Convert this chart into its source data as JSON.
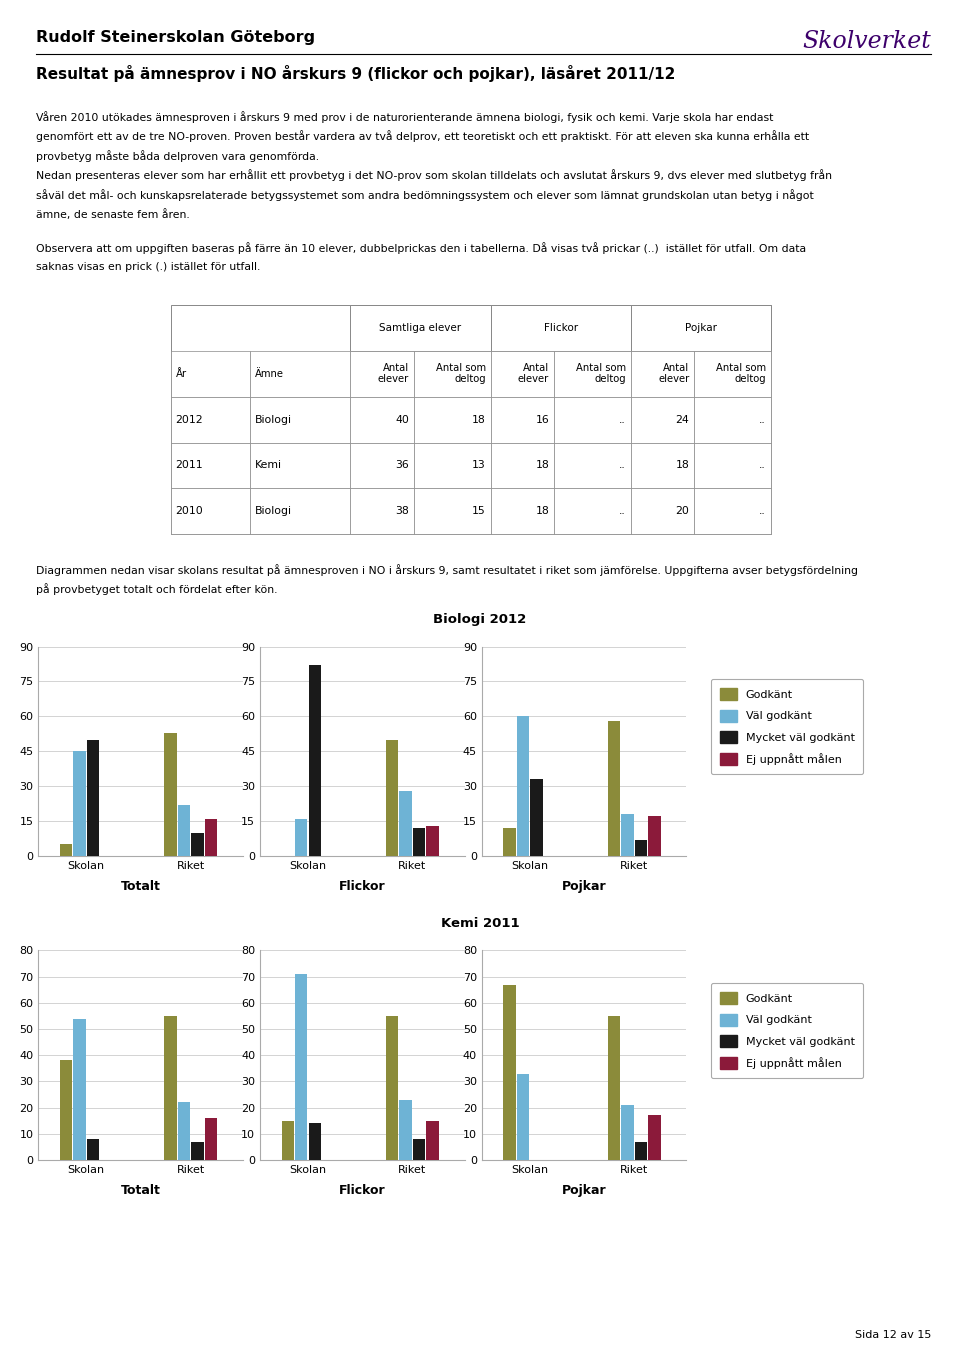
{
  "school_name": "Rudolf Steinerskolan Göteborg",
  "main_title": "Resultat på ämnesprov i NO årskurs 9 (flickor och pojkar), läsåret 2011/12",
  "intro_text1_lines": [
    "Våren 2010 utökades ämnesproven i årskurs 9 med prov i de naturorienterande ämnena biologi, fysik och kemi. Varje skola har endast",
    "genomfört ett av de tre NO-proven. Proven består vardera av två delprov, ett teoretiskt och ett praktiskt. För att eleven ska kunna erhålla ett",
    "provbetyg måste båda delproven vara genomförda."
  ],
  "intro_text2_lines": [
    "Nedan presenteras elever som har erhållit ett provbetyg i det NO-prov som skolan tilldelats och avslutat årskurs 9, dvs elever med slutbetyg från",
    "såväl det mål- och kunskapsrelaterade betygssystemet som andra bedömningssystem och elever som lämnat grundskolan utan betyg i något",
    "ämne, de senaste fem åren."
  ],
  "obs_text_lines": [
    "Observera att om uppgiften baseras på färre än 10 elever, dubbelprickas den i tabellerna. Då visas två prickar (..)  istället för utfall. Om data",
    "saknas visas en prick (.) istället för utfall."
  ],
  "diagram_text_lines": [
    "Diagrammen nedan visar skolans resultat på ämnesproven i NO i årskurs 9, samt resultatet i riket som jämförelse. Uppgifterna avser betygsfördelning",
    "på provbetyget totalt och fördelat efter kön."
  ],
  "page_text": "Sida 12 av 15",
  "table_section_headers": [
    "Samtliga elever",
    "Flickor",
    "Pojkar"
  ],
  "table_data": [
    [
      "2012",
      "Biologi",
      "40",
      "18",
      "16",
      "..",
      "24",
      ".."
    ],
    [
      "2011",
      "Kemi",
      "36",
      "13",
      "18",
      "..",
      "18",
      ".."
    ],
    [
      "2010",
      "Biologi",
      "38",
      "15",
      "18",
      "..",
      "20",
      ".."
    ]
  ],
  "chart1_title": "Biologi 2012",
  "chart2_title": "Kemi 2011",
  "subtitles": [
    "Totalt",
    "Flickor",
    "Pojkar"
  ],
  "x_labels": [
    "Skolan",
    "Riket"
  ],
  "legend_labels": [
    "Godkänt",
    "Väl godkänt",
    "Mycket väl godkänt",
    "Ej uppnått målen"
  ],
  "bar_colors": [
    "#8B8B3A",
    "#6EB3D5",
    "#1A1A1A",
    "#8B1A3A"
  ],
  "biologi2012": {
    "totalt": {
      "skolan": [
        5,
        45,
        50,
        0
      ],
      "riket": [
        53,
        22,
        10,
        16
      ]
    },
    "flickor": {
      "skolan": [
        0,
        16,
        82,
        0
      ],
      "riket": [
        50,
        28,
        12,
        13
      ]
    },
    "pojkar": {
      "skolan": [
        12,
        60,
        33,
        0
      ],
      "riket": [
        58,
        18,
        7,
        17
      ]
    }
  },
  "kemi2011": {
    "totalt": {
      "skolan": [
        38,
        54,
        8,
        0
      ],
      "riket": [
        55,
        22,
        7,
        16
      ]
    },
    "flickor": {
      "skolan": [
        15,
        71,
        14,
        0
      ],
      "riket": [
        55,
        23,
        8,
        15
      ]
    },
    "pojkar": {
      "skolan": [
        67,
        33,
        0,
        0
      ],
      "riket": [
        55,
        21,
        7,
        17
      ]
    }
  },
  "biologi_ylim": [
    0,
    90
  ],
  "biologi_yticks": [
    0,
    15,
    30,
    45,
    60,
    75,
    90
  ],
  "kemi_ylim": [
    0,
    80
  ],
  "kemi_yticks": [
    0,
    10,
    20,
    30,
    40,
    50,
    60,
    70,
    80
  ],
  "background_color": "#ffffff"
}
